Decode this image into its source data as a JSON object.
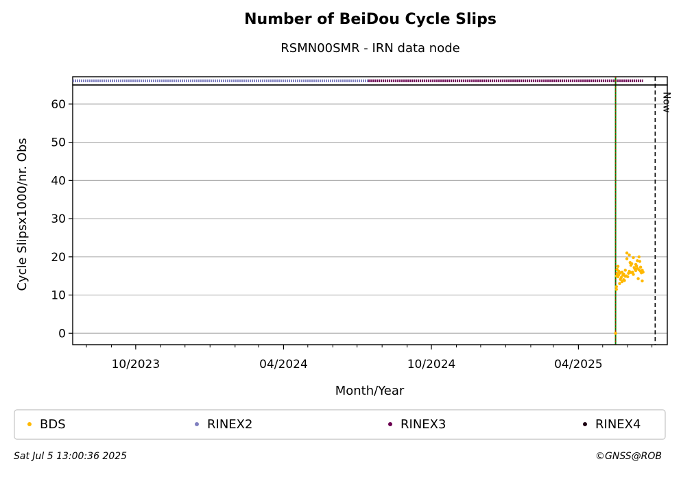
{
  "chart_data": {
    "type": "scatter",
    "title": "Number of BeiDou Cycle Slips",
    "subtitle": "RSMN00SMR - IRN data node",
    "xlabel": "Month/Year",
    "ylabel": "Cycle Slipsx1000/nr. Obs",
    "xlim": [
      "2023-07-15",
      "2025-07-20"
    ],
    "ylim": [
      -3,
      65
    ],
    "y_ticks": [
      0,
      10,
      20,
      30,
      40,
      50,
      60
    ],
    "x_ticks": [
      {
        "date": "2023-10-01",
        "label": "10/2023"
      },
      {
        "date": "2024-04-01",
        "label": "04/2024"
      },
      {
        "date": "2024-10-01",
        "label": "10/2024"
      },
      {
        "date": "2025-04-01",
        "label": "04/2025"
      }
    ],
    "grid": "horizontal",
    "now_marker": {
      "date": "2025-07-05",
      "label": "Now"
    },
    "vertical_marker_date": "2025-05-17",
    "series": [
      {
        "name": "BDS",
        "color": "#ffb800",
        "points": [
          [
            "2025-05-17",
            0
          ],
          [
            "2025-05-18",
            11.5
          ],
          [
            "2025-05-18",
            12.2
          ],
          [
            "2025-05-18",
            15.0
          ],
          [
            "2025-05-19",
            15.6
          ],
          [
            "2025-05-19",
            16.7
          ],
          [
            "2025-05-20",
            17.5
          ],
          [
            "2025-05-20",
            14.8
          ],
          [
            "2025-05-21",
            16.2
          ],
          [
            "2025-05-21",
            15.3
          ],
          [
            "2025-05-22",
            13.0
          ],
          [
            "2025-05-23",
            14.1
          ],
          [
            "2025-05-23",
            15.8
          ],
          [
            "2025-05-24",
            14.6
          ],
          [
            "2025-05-25",
            13.5
          ],
          [
            "2025-05-25",
            16.0
          ],
          [
            "2025-05-26",
            15.2
          ],
          [
            "2025-05-27",
            14.0
          ],
          [
            "2025-05-27",
            15.5
          ],
          [
            "2025-05-28",
            13.8
          ],
          [
            "2025-05-29",
            16.5
          ],
          [
            "2025-05-29",
            14.9
          ],
          [
            "2025-05-30",
            15.0
          ],
          [
            "2025-05-31",
            21.0
          ],
          [
            "2025-05-31",
            19.5
          ],
          [
            "2025-06-01",
            14.8
          ],
          [
            "2025-06-02",
            15.7
          ],
          [
            "2025-06-03",
            20.5
          ],
          [
            "2025-06-03",
            16.2
          ],
          [
            "2025-06-04",
            18.5
          ],
          [
            "2025-06-05",
            17.8
          ],
          [
            "2025-06-05",
            15.9
          ],
          [
            "2025-06-06",
            18.2
          ],
          [
            "2025-06-07",
            16.0
          ],
          [
            "2025-06-08",
            15.4
          ],
          [
            "2025-06-08",
            19.8
          ],
          [
            "2025-06-09",
            17.2
          ],
          [
            "2025-06-10",
            16.8
          ],
          [
            "2025-06-11",
            18.0
          ],
          [
            "2025-06-11",
            16.4
          ],
          [
            "2025-06-12",
            17.6
          ],
          [
            "2025-06-13",
            19.0
          ],
          [
            "2025-06-13",
            17.0
          ],
          [
            "2025-06-14",
            14.3
          ],
          [
            "2025-06-15",
            16.6
          ],
          [
            "2025-06-15",
            20.0
          ],
          [
            "2025-06-16",
            18.8
          ],
          [
            "2025-06-17",
            16.2
          ],
          [
            "2025-06-17",
            17.3
          ],
          [
            "2025-06-18",
            15.8
          ],
          [
            "2025-06-19",
            16.5
          ],
          [
            "2025-06-19",
            13.7
          ],
          [
            "2025-06-20",
            16.0
          ]
        ]
      },
      {
        "name": "RINEX2",
        "color": "#8080c0",
        "range": [
          "2023-07-15",
          "2024-07-15"
        ]
      },
      {
        "name": "RINEX3",
        "color": "#6a0050",
        "range": [
          "2024-07-15",
          "2025-06-20"
        ]
      },
      {
        "name": "RINEX4",
        "color": "#1a0010"
      }
    ]
  },
  "footer": {
    "timestamp": "Sat Jul  5 13:00:36 2025",
    "copyright": "©GNSS@ROB"
  }
}
